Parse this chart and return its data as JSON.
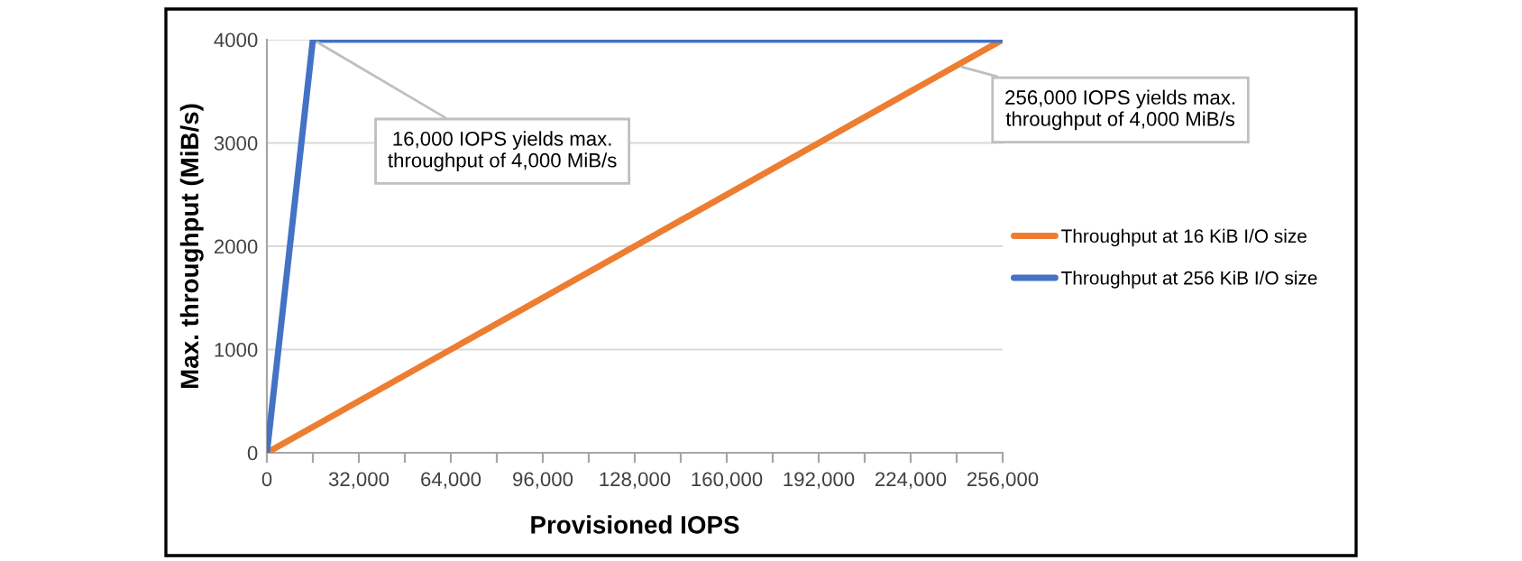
{
  "chart_data": {
    "type": "line",
    "xlabel": "Provisioned IOPS",
    "ylabel": "Max. throughput (MiB/s)",
    "series": [
      {
        "name": "Throughput at 16 KiB I/O size",
        "color": "#ed7d31",
        "x": [
          0,
          256000
        ],
        "values": [
          0,
          4000
        ]
      },
      {
        "name": "Throughput at 256 KiB I/O size",
        "color": "#4472c4",
        "x": [
          0,
          16000,
          256000
        ],
        "values": [
          0,
          4000,
          4000
        ]
      }
    ],
    "xlim": [
      0,
      256000
    ],
    "ylim": [
      0,
      4000
    ],
    "xticks": [
      0,
      {
        "value": 16000,
        "label": null
      },
      {
        "value": 32000,
        "label": "32,000"
      },
      {
        "value": 48000,
        "label": null
      },
      {
        "value": 64000,
        "label": "64,000"
      },
      {
        "value": 80000,
        "label": null
      },
      {
        "value": 96000,
        "label": "96,000"
      },
      {
        "value": 112000,
        "label": null
      },
      {
        "value": 128000,
        "label": "128,000"
      },
      {
        "value": 144000,
        "label": null
      },
      {
        "value": 160000,
        "label": "160,000"
      },
      {
        "value": 176000,
        "label": null
      },
      {
        "value": 192000,
        "label": "192,000"
      },
      {
        "value": 208000,
        "label": null
      },
      {
        "value": 224000,
        "label": "224,000"
      },
      {
        "value": 240000,
        "label": null
      },
      {
        "value": 256000,
        "label": "256,000"
      }
    ],
    "yticks": [
      0,
      1000,
      2000,
      3000,
      4000
    ],
    "annotations": [
      {
        "text": "16,000 IOPS yields max.\nthroughput of 4,000 MiB/s",
        "x": 16000,
        "y": 4000
      },
      {
        "text": "256,000 IOPS yields max.\nthroughput of 4,000 MiB/s",
        "x": 240000,
        "y": 3750
      }
    ],
    "grid": "y",
    "legend": "right",
    "marker": "none",
    "line_style": "solid"
  }
}
